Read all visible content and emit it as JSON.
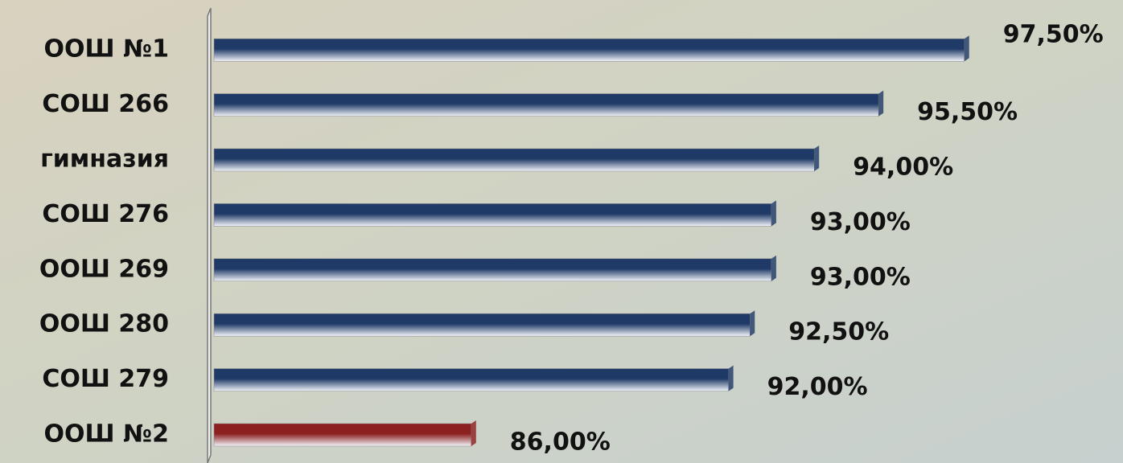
{
  "chart_data": {
    "type": "hbar",
    "categories": [
      "ООШ №1",
      "СОШ 266",
      "гимназия",
      "СОШ 276",
      "ООШ 269",
      "ООШ 280",
      "СОШ 279",
      "ООШ №2"
    ],
    "values": [
      97.5,
      95.5,
      94,
      93,
      93,
      92.5,
      92,
      86
    ],
    "value_labels": [
      "97,50%",
      "95,50%",
      "94,00%",
      "93,00%",
      "93,00%",
      "92,50%",
      "92,00%",
      "86,00%"
    ],
    "colors": [
      "#1f3a66",
      "#1f3a66",
      "#1f3a66",
      "#1f3a66",
      "#1f3a66",
      "#1f3a66",
      "#1f3a66",
      "#8c1f1f"
    ],
    "xlim": [
      80,
      100
    ]
  }
}
